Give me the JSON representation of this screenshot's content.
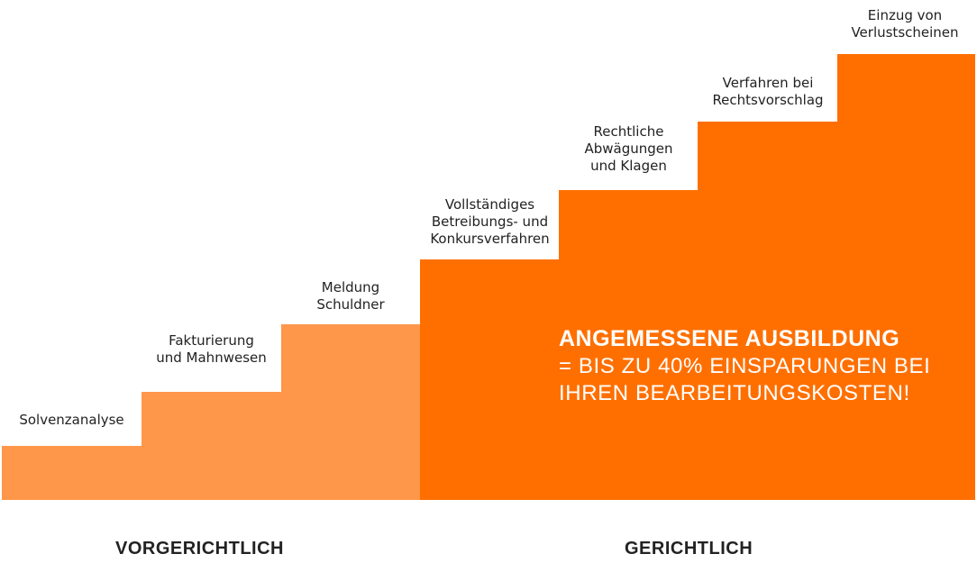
{
  "colors": {
    "pre_court": "#ff974a",
    "court": "#ff6f00",
    "text": "#222222",
    "callout_text": "#ffffff"
  },
  "steps": [
    {
      "label": "Solvenzanalyse",
      "phase": "pre"
    },
    {
      "label": "Fakturierung\nund Mahnwesen",
      "phase": "pre"
    },
    {
      "label": "Meldung\nSchuldner",
      "phase": "pre"
    },
    {
      "label": "Vollständiges\nBetreibungs- und\nKonkursverfahren",
      "phase": "court"
    },
    {
      "label": "Rechtliche\nAbwägungen\nund Klagen",
      "phase": "court"
    },
    {
      "label": "Verfahren bei\nRechtsvorschlag",
      "phase": "court"
    },
    {
      "label": "Einzug von\nVerlustscheinen",
      "phase": "court"
    }
  ],
  "callout": {
    "title": "ANGEMESSENE AUSBILDUNG",
    "body": "= BIS ZU 40% EINSPARUNGEN BEI\nIHREN BEARBEITUNGSKOSTEN!"
  },
  "phases": {
    "pre_label": "VORGERICHTLICH",
    "court_label": "GERICHTLICH"
  }
}
